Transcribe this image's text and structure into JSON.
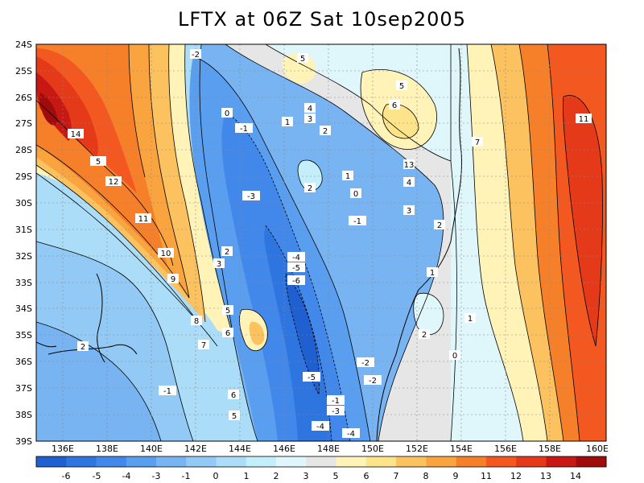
{
  "title": "LFTX at 06Z Sat 10sep2005",
  "map": {
    "lat_ticks": [
      "24S",
      "25S",
      "26S",
      "27S",
      "28S",
      "29S",
      "30S",
      "31S",
      "32S",
      "33S",
      "34S",
      "35S",
      "36S",
      "37S",
      "38S",
      "39S"
    ],
    "lon_ticks": [
      "136E",
      "138E",
      "140E",
      "142E",
      "144E",
      "146E",
      "148E",
      "150E",
      "152E",
      "154E",
      "156E",
      "158E",
      "160E"
    ],
    "contour_labels": [
      "-2",
      "5",
      "5",
      "4",
      "3",
      "6",
      "0",
      "1",
      "2",
      "-1",
      "7",
      "11",
      "14",
      "13",
      "5",
      "12",
      "2",
      "1",
      "4",
      "-3",
      "0",
      "3",
      "-1",
      "11",
      "2",
      "10",
      "3",
      "2",
      "-4",
      "-5",
      "-6",
      "1",
      "9",
      "8",
      "5",
      "6",
      "7",
      "2",
      "1",
      "2",
      "-2",
      "-2",
      "0",
      "-1",
      "6",
      "5",
      "-5",
      "-1",
      "-3",
      "-4",
      "-4"
    ]
  },
  "colorbar": {
    "labels": [
      "-6",
      "-5",
      "-4",
      "-3",
      "-1",
      "0",
      "1",
      "2",
      "3",
      "5",
      "6",
      "7",
      "8",
      "9",
      "11",
      "12",
      "13",
      "14"
    ],
    "colors": [
      "#1f5fd0",
      "#2f75e0",
      "#4288ea",
      "#5a9ef0",
      "#78b4f2",
      "#92c9f5",
      "#abddf8",
      "#c4eef9",
      "#dff6fb",
      "#e6e6e6",
      "#fff3b8",
      "#fde48a",
      "#fcc25f",
      "#f9a43e",
      "#f6802a",
      "#f25820",
      "#e53a1a",
      "#c81814",
      "#a00c0c"
    ]
  },
  "palette": {
    "lv": [
      "#1f5fd0",
      "#2f75e0",
      "#4288ea",
      "#5a9ef0",
      "#78b4f2",
      "#92c9f5",
      "#abddf8",
      "#c4eef9",
      "#dff6fb",
      "#e6e6e6",
      "#fff3b8",
      "#fde48a",
      "#fcc25f",
      "#f9a43e",
      "#f6802a",
      "#f25820",
      "#e53a1a",
      "#c81814",
      "#a00c0c"
    ]
  }
}
